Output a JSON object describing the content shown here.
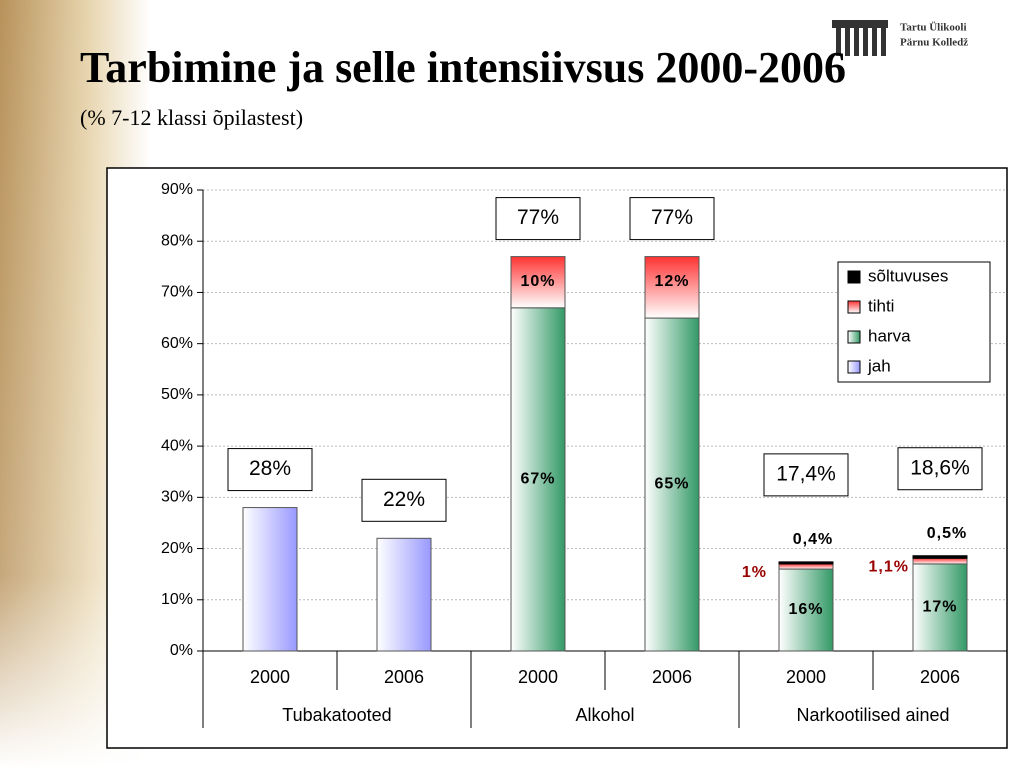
{
  "logo": {
    "line1": "Tartu Ülikooli",
    "line2": "Pärnu Kolledž"
  },
  "chart_data": {
    "type": "stacked-bar",
    "title": "Tarbimine ja selle intensiivsus 2000-2006",
    "subtitle": "(% 7-12 klassi õpilastest)",
    "groups": [
      {
        "name": "Tubakatooted",
        "categories": [
          "2000",
          "2006"
        ]
      },
      {
        "name": "Alkohol",
        "categories": [
          "2000",
          "2006"
        ]
      },
      {
        "name": "Narkootilised ained",
        "categories": [
          "2000",
          "2006"
        ]
      }
    ],
    "series": [
      {
        "name": "jah",
        "color": "#9999ff",
        "values": [
          28,
          22,
          null,
          null,
          null,
          null
        ]
      },
      {
        "name": "harva",
        "color": "#339966",
        "values": [
          null,
          null,
          67,
          65,
          16,
          17
        ],
        "value_labels": [
          null,
          null,
          "67%",
          "65%",
          "16%",
          "17%"
        ]
      },
      {
        "name": "tihti",
        "color": "#ff3333",
        "values": [
          null,
          null,
          10,
          12,
          1,
          1.1
        ],
        "value_labels": [
          null,
          null,
          "10%",
          "12%",
          "1%",
          "1,1%"
        ]
      },
      {
        "name": "sõltuvuses",
        "color": "#000000",
        "values": [
          null,
          null,
          null,
          null,
          0.4,
          0.5
        ],
        "value_labels": [
          null,
          null,
          null,
          null,
          "0,4%",
          "0,5%"
        ]
      }
    ],
    "totals": {
      "values": [
        28,
        22,
        77,
        77,
        17.4,
        18.6
      ],
      "value_labels": [
        "28%",
        "22%",
        "77%",
        "77%",
        "17,4%",
        "18,6%"
      ]
    },
    "ylim": [
      0,
      90
    ],
    "yticks": [
      {
        "value": 0,
        "label": "0%"
      },
      {
        "value": 10,
        "label": "10%"
      },
      {
        "value": 20,
        "label": "20%"
      },
      {
        "value": 30,
        "label": "30%"
      },
      {
        "value": 40,
        "label": "40%"
      },
      {
        "value": 50,
        "label": "50%"
      },
      {
        "value": 60,
        "label": "60%"
      },
      {
        "value": 70,
        "label": "70%"
      },
      {
        "value": 80,
        "label": "80%"
      },
      {
        "value": 90,
        "label": "90%"
      }
    ],
    "grid": true,
    "legend": "right"
  }
}
